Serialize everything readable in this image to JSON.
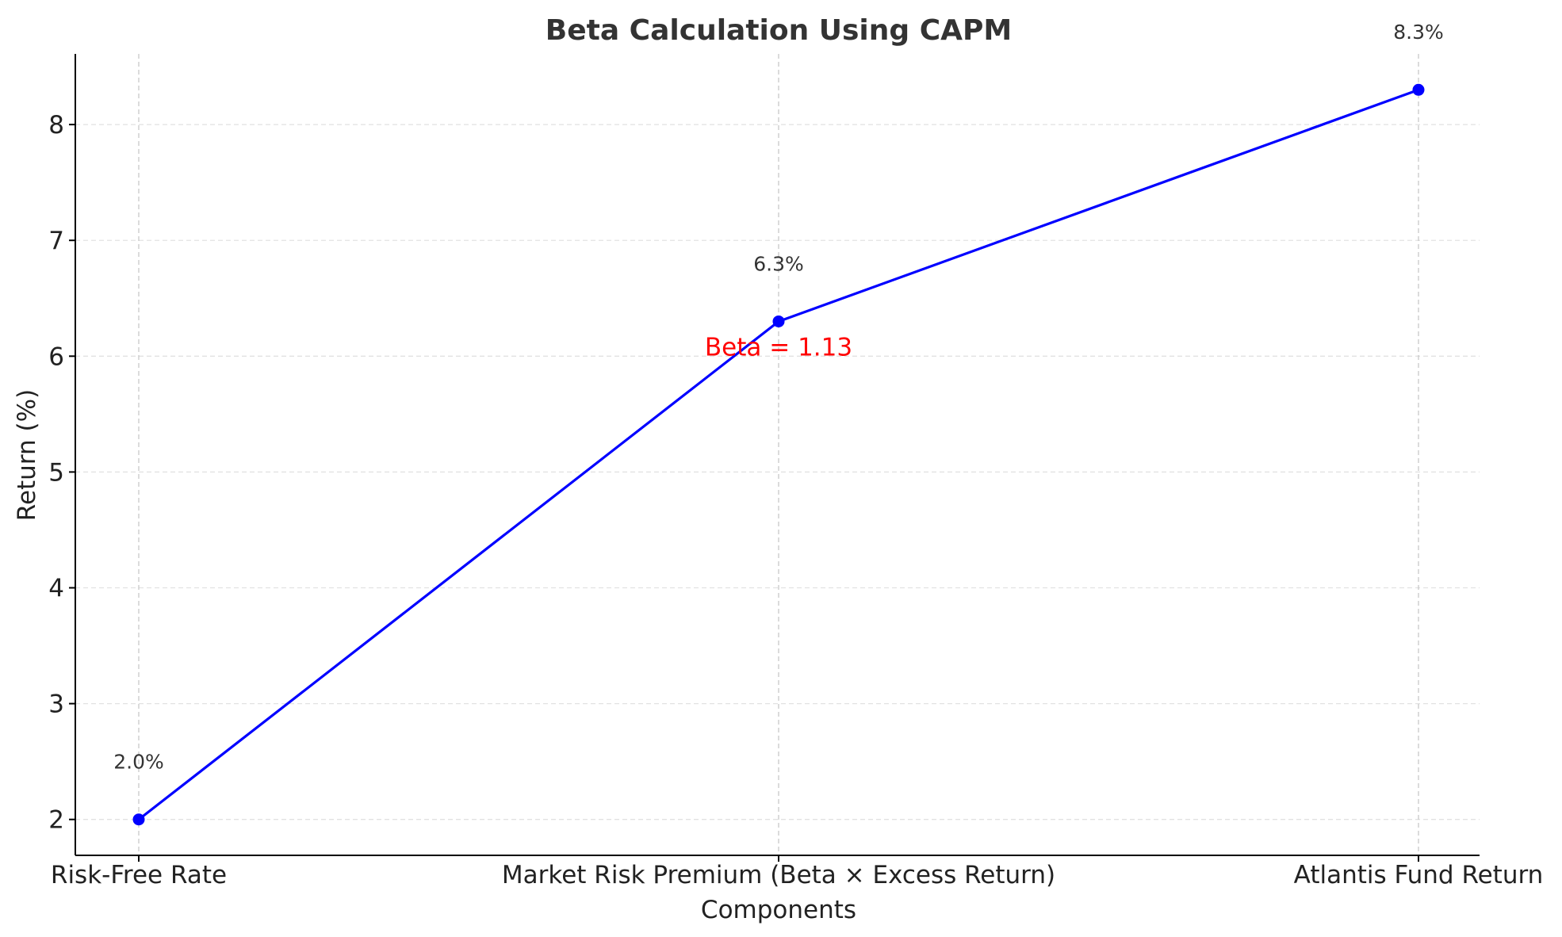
{
  "chart_data": {
    "type": "line",
    "title": "Beta Calculation Using CAPM",
    "xlabel": "Components",
    "ylabel": "Return (%)",
    "categories": [
      "Risk-Free Rate",
      "Market Risk Premium (Beta × Excess Return)",
      "Atlantis Fund Return"
    ],
    "series": [
      {
        "values": [
          2.0,
          6.3,
          8.3
        ],
        "color": "#0000ff"
      }
    ],
    "data_labels": [
      "2.0%",
      "6.3%",
      "8.3%"
    ],
    "yticks": [
      2,
      3,
      4,
      5,
      6,
      7,
      8
    ],
    "ylim": [
      1.69,
      8.61
    ],
    "grid": true,
    "annotation": {
      "text": "Beta = 1.13",
      "color": "#ff0000",
      "x_category": 1,
      "y": 6.08
    }
  }
}
